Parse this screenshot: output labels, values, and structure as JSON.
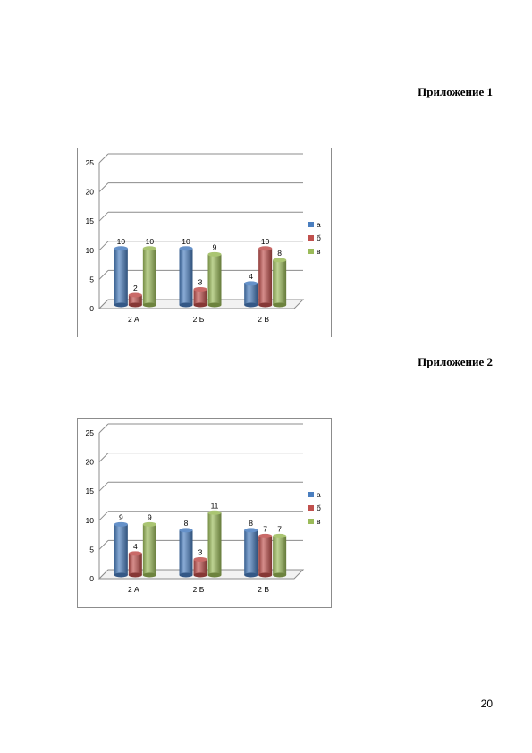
{
  "appendix_1": {
    "heading": "Приложение 1"
  },
  "appendix_2": {
    "heading": "Приложение 2"
  },
  "page_number": "20",
  "colors": {
    "a": "#4a7ebf",
    "b": "#c0504d",
    "c": "#9bbb59",
    "grid": "#8c8c8c",
    "axis_text": "#000000"
  },
  "chart_data": [
    {
      "type": "bar",
      "categories": [
        "2 А",
        "2 Б",
        "2 В"
      ],
      "series": [
        {
          "name": "а",
          "values": [
            10,
            10,
            4
          ]
        },
        {
          "name": "б",
          "values": [
            2,
            3,
            10
          ]
        },
        {
          "name": "в",
          "values": [
            10,
            9,
            8
          ]
        }
      ],
      "data_labels": [
        [
          "10",
          "10",
          "4"
        ],
        [
          "2",
          "3",
          "10"
        ],
        [
          "10",
          "9",
          "8"
        ]
      ],
      "y_ticks": [
        "0",
        "5",
        "10",
        "15",
        "20",
        "25"
      ],
      "ylim": [
        0,
        25
      ],
      "legend_position": "right",
      "grid": true,
      "style": "3d-cylinder"
    },
    {
      "type": "bar",
      "categories": [
        "2 А",
        "2 Б",
        "2 В"
      ],
      "series": [
        {
          "name": "а",
          "values": [
            9,
            8,
            8
          ]
        },
        {
          "name": "б",
          "values": [
            4,
            3,
            7
          ]
        },
        {
          "name": "в",
          "values": [
            9,
            11,
            7
          ]
        }
      ],
      "data_labels": [
        [
          "9",
          "8",
          "8"
        ],
        [
          "4",
          "3",
          "7"
        ],
        [
          "9",
          "11",
          "7"
        ]
      ],
      "y_ticks": [
        "0",
        "5",
        "10",
        "15",
        "20",
        "25"
      ],
      "ylim": [
        0,
        25
      ],
      "legend_position": "right",
      "grid": true,
      "style": "3d-cylinder"
    }
  ]
}
